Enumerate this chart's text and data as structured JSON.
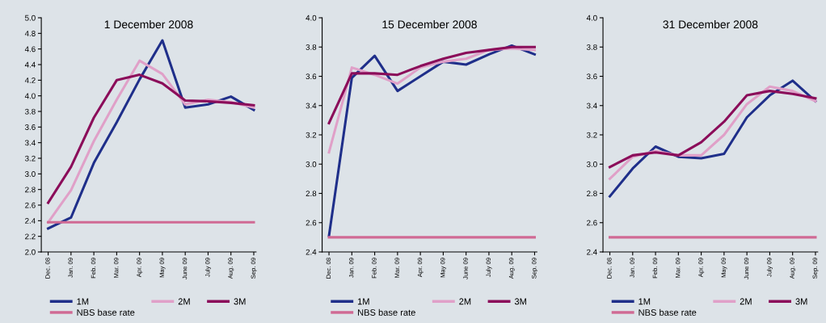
{
  "chart_data": [
    {
      "type": "line",
      "title": "1 December 2008",
      "categories": [
        "Dec. 08",
        "Jan. 09",
        "Feb. 09",
        "Mar. 09",
        "Apr. 09",
        "May 09",
        "June 09",
        "July 09",
        "Aug. 09",
        "Sep. 09"
      ],
      "series": [
        {
          "name": "1M",
          "color": "#1f2f8a",
          "values": [
            2.3,
            2.44,
            3.14,
            3.66,
            4.21,
            4.71,
            3.85,
            3.89,
            3.99,
            3.82
          ]
        },
        {
          "name": "2M",
          "color": "#e0a0c8",
          "values": [
            2.38,
            2.79,
            3.42,
            3.95,
            4.45,
            4.28,
            3.89,
            3.95,
            3.92,
            3.85
          ]
        },
        {
          "name": "3M",
          "color": "#8b0d5a",
          "values": [
            2.63,
            3.09,
            3.72,
            4.2,
            4.27,
            4.16,
            3.94,
            3.93,
            3.91,
            3.88
          ]
        },
        {
          "name": "NBS base rate",
          "color": "#d06a94",
          "values": [
            2.38,
            2.38,
            2.38,
            2.38,
            2.38,
            2.38,
            2.38,
            2.38,
            2.38,
            2.38
          ]
        }
      ],
      "ylim": [
        2.0,
        5.0
      ],
      "yticks": [
        {
          "value": 2.0,
          "label": "2.0"
        },
        2.2,
        2.4,
        2.6,
        2.8,
        {
          "value": 3.0,
          "label": "3.0"
        },
        3.2,
        3.4,
        3.6,
        3.8,
        {
          "value": 4.0,
          "label": "4.0"
        },
        4.2,
        4.4,
        4.6,
        4.8,
        {
          "value": 5.0,
          "label": "5.0"
        }
      ],
      "legend": "bottom",
      "grid": false
    },
    {
      "type": "line",
      "title": "15 December 2008",
      "categories": [
        "Dec. 08",
        "Jan. 09",
        "Feb. 09",
        "Mar. 09",
        "Apr. 09",
        "May 09",
        "June 09",
        "July 09",
        "Aug. 09",
        "Sep. 09"
      ],
      "series": [
        {
          "name": "1M",
          "color": "#1f2f8a",
          "values": [
            2.51,
            3.59,
            3.74,
            3.5,
            3.6,
            3.7,
            3.68,
            3.75,
            3.81,
            3.75
          ]
        },
        {
          "name": "2M",
          "color": "#e0a0c8",
          "values": [
            3.08,
            3.66,
            3.61,
            3.55,
            3.66,
            3.7,
            3.72,
            3.78,
            3.79,
            3.78
          ]
        },
        {
          "name": "3M",
          "color": "#8b0d5a",
          "values": [
            3.28,
            3.62,
            3.62,
            3.61,
            3.67,
            3.72,
            3.76,
            3.78,
            3.8,
            3.8
          ]
        },
        {
          "name": "NBS base rate",
          "color": "#d06a94",
          "values": [
            2.5,
            2.5,
            2.5,
            2.5,
            2.5,
            2.5,
            2.5,
            2.5,
            2.5,
            2.5
          ]
        }
      ],
      "ylim": [
        2.4,
        4.0
      ],
      "yticks": [
        2.4,
        2.6,
        2.8,
        {
          "value": 3.0,
          "label": "3.0"
        },
        3.2,
        3.4,
        3.6,
        3.8,
        {
          "value": 4.0,
          "label": "4.0"
        }
      ],
      "legend": "bottom",
      "grid": false
    },
    {
      "type": "line",
      "title": "31 December 2008",
      "categories": [
        "Dec. 08",
        "Jan. 09",
        "Feb. 09",
        "Mar. 09",
        "Apr. 09",
        "May 09",
        "June 09",
        "July 09",
        "Aug. 09",
        "Sep. 09"
      ],
      "series": [
        {
          "name": "1M",
          "color": "#1f2f8a",
          "values": [
            2.78,
            2.97,
            3.12,
            3.05,
            3.04,
            3.07,
            3.32,
            3.47,
            3.57,
            3.43
          ]
        },
        {
          "name": "2M",
          "color": "#e0a0c8",
          "values": [
            2.9,
            3.05,
            3.09,
            3.06,
            3.06,
            3.2,
            3.41,
            3.53,
            3.5,
            3.43
          ]
        },
        {
          "name": "3M",
          "color": "#8b0d5a",
          "values": [
            2.98,
            3.06,
            3.08,
            3.06,
            3.15,
            3.29,
            3.47,
            3.5,
            3.48,
            3.45
          ]
        },
        {
          "name": "NBS base rate",
          "color": "#d06a94",
          "values": [
            2.5,
            2.5,
            2.5,
            2.5,
            2.5,
            2.5,
            2.5,
            2.5,
            2.5,
            2.5
          ]
        }
      ],
      "ylim": [
        2.4,
        4.0
      ],
      "yticks": [
        2.4,
        2.6,
        2.8,
        {
          "value": 3.0,
          "label": "3.0"
        },
        3.2,
        3.4,
        3.6,
        3.8,
        {
          "value": 4.0,
          "label": "4.0"
        }
      ],
      "legend": "bottom",
      "grid": false
    }
  ]
}
